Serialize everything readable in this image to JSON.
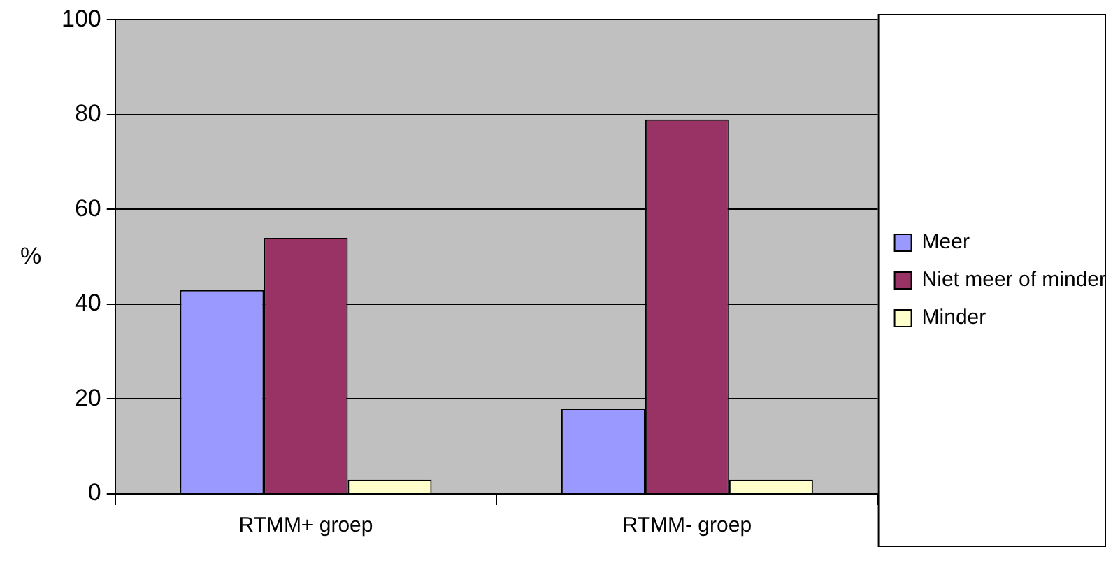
{
  "chart_data": {
    "type": "bar",
    "ylabel": "%",
    "categories": [
      "RTMM+ groep",
      "RTMM- groep"
    ],
    "series": [
      {
        "name": "Meer",
        "color": "#9999ff",
        "values": [
          43,
          18
        ]
      },
      {
        "name": "Niet meer of minder",
        "color": "#993366",
        "values": [
          54,
          79
        ]
      },
      {
        "name": "Minder",
        "color": "#ffffcc",
        "values": [
          3,
          3
        ]
      }
    ],
    "ylim": [
      0,
      100
    ],
    "yticks": [
      0,
      20,
      40,
      60,
      80,
      100
    ],
    "grid": "y",
    "legend": "right"
  }
}
